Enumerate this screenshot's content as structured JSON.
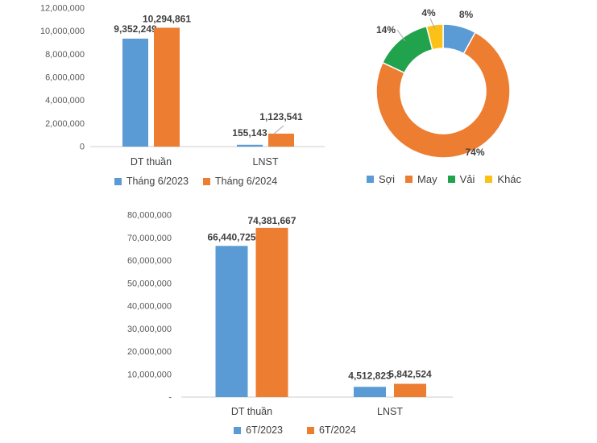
{
  "page": {
    "background": "#ffffff"
  },
  "colors": {
    "series_2023_blue": "#5B9BD5",
    "series_2024_orange": "#ED7D31",
    "vai_green": "#21A24C",
    "khac_yellow": "#FCC117",
    "axis_line": "#d6d6d6",
    "tick_text": "#595959",
    "label_text": "#3f3f3f"
  },
  "chart_data": [
    {
      "id": "monthly",
      "type": "bar",
      "title": "",
      "xlabel": "",
      "ylabel": "",
      "categories": [
        "DT thuần",
        "LNST"
      ],
      "series": [
        {
          "name": "Tháng 6/2023",
          "color": "#5B9BD5",
          "values": [
            9352249,
            155143
          ],
          "labels": [
            "9,352,249",
            "155,143"
          ]
        },
        {
          "name": "Tháng 6/2024",
          "color": "#ED7D31",
          "values": [
            10294861,
            1123541
          ],
          "labels": [
            "10,294,861",
            "1,123,541"
          ]
        }
      ],
      "y_ticks": [
        "12,000,000",
        "10,000,000",
        "8,000,000",
        "6,000,000",
        "4,000,000",
        "2,000,000",
        "0"
      ],
      "ylim": [
        0,
        12000000
      ],
      "gridlines": false,
      "legend_position": "bottom"
    },
    {
      "id": "segment-share",
      "type": "donut",
      "title": "",
      "slices": [
        {
          "label": "Sợi",
          "value": 8,
          "text": "8%",
          "color": "#5B9BD5"
        },
        {
          "label": "May",
          "value": 74,
          "text": "74%",
          "color": "#ED7D31"
        },
        {
          "label": "Vải",
          "value": 14,
          "text": "14%",
          "color": "#21A24C"
        },
        {
          "label": "Khác",
          "value": 4,
          "text": "4%",
          "color": "#FCC117"
        }
      ],
      "legend_position": "bottom"
    },
    {
      "id": "halfyear",
      "type": "bar",
      "title": "",
      "xlabel": "",
      "ylabel": "",
      "categories": [
        "DT thuần",
        "LNST"
      ],
      "series": [
        {
          "name": "6T/2023",
          "color": "#5B9BD5",
          "values": [
            66440725,
            4512823
          ],
          "labels": [
            "66,440,725",
            "4,512,823"
          ]
        },
        {
          "name": "6T/2024",
          "color": "#ED7D31",
          "values": [
            74381667,
            5842524
          ],
          "labels": [
            "74,381,667",
            "5,842,524"
          ]
        }
      ],
      "y_ticks": [
        "80,000,000",
        "70,000,000",
        "60,000,000",
        "50,000,000",
        "40,000,000",
        "30,000,000",
        "20,000,000",
        "10,000,000",
        "-"
      ],
      "ylim": [
        0,
        80000000
      ],
      "gridlines": false,
      "legend_position": "bottom"
    }
  ]
}
